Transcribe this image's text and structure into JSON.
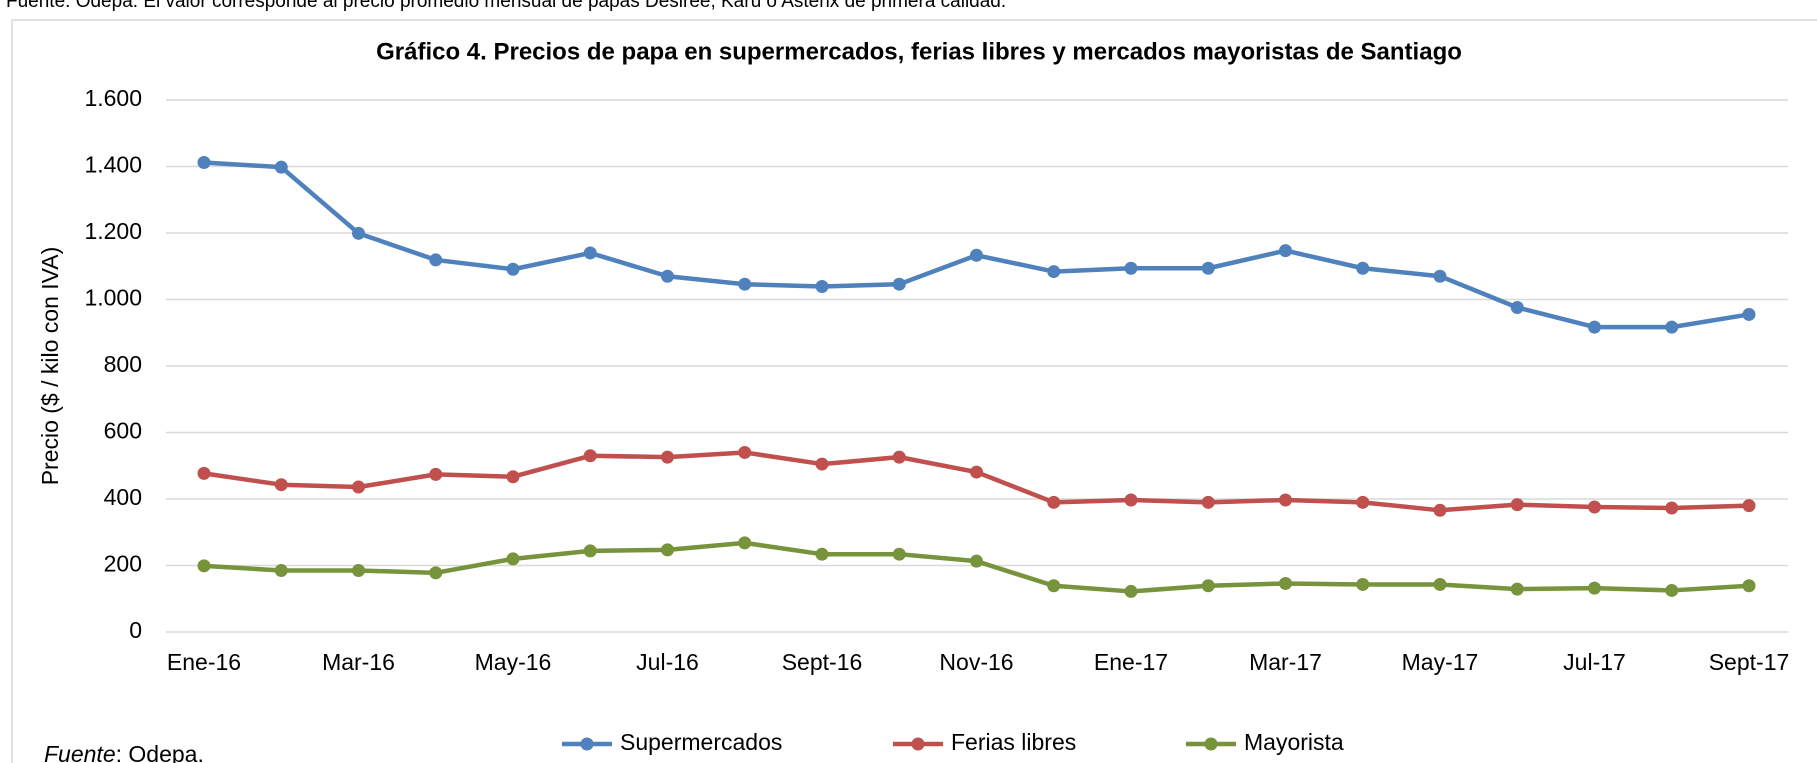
{
  "note": "Fuente: Odepa. El valor corresponde al precio promedio mensual de papas Desirée, Karú o Asterix de primera calidad.",
  "source_prefix": "Fuente",
  "source_rest": ": Odepa.",
  "chart_data": {
    "type": "line",
    "title": "Gráfico 4. Precios de papa en supermercados, ferias libres y mercados mayoristas de Santiago",
    "y_label": "Precio ($ / kilo con IVA)",
    "categories": [
      "Ene-16",
      null,
      "Mar-16",
      null,
      "May-16",
      null,
      "Jul-16",
      null,
      "Sept-16",
      null,
      "Nov-16",
      null,
      "Ene-17",
      null,
      "Mar-17",
      null,
      "May-17",
      null,
      "Jul-17",
      null,
      "Sept-17"
    ],
    "series": [
      {
        "name": "Supermercados",
        "color": "#4f81bd",
        "values": [
          1412,
          1398,
          1199,
          1119,
          1091,
          1140,
          1070,
          1046,
          1039,
          1046,
          1133,
          1084,
          1094,
          1094,
          1147,
          1094,
          1070,
          976,
          917,
          917,
          955
        ]
      },
      {
        "name": "Ferias libres",
        "color": "#c0504d",
        "values": [
          477,
          443,
          436,
          474,
          467,
          530,
          526,
          540,
          505,
          526,
          481,
          390,
          397,
          390,
          397,
          390,
          366,
          383,
          376,
          373,
          380
        ]
      },
      {
        "name": "Mayorista",
        "color": "#77933c",
        "values": [
          199,
          185,
          185,
          178,
          220,
          244,
          247,
          268,
          234,
          234,
          213,
          139,
          122,
          139,
          146,
          143,
          143,
          129,
          132,
          125,
          139
        ]
      }
    ],
    "ylim": [
      0,
      1600
    ],
    "yticks": [
      0,
      200,
      400,
      600,
      800,
      {
        "value": 1000,
        "label": "1.000"
      },
      {
        "value": 1200,
        "label": "1.200"
      },
      {
        "value": 1400,
        "label": "1.400"
      },
      {
        "value": 1600,
        "label": "1.600"
      }
    ],
    "grid": true,
    "legend": "bottom"
  }
}
